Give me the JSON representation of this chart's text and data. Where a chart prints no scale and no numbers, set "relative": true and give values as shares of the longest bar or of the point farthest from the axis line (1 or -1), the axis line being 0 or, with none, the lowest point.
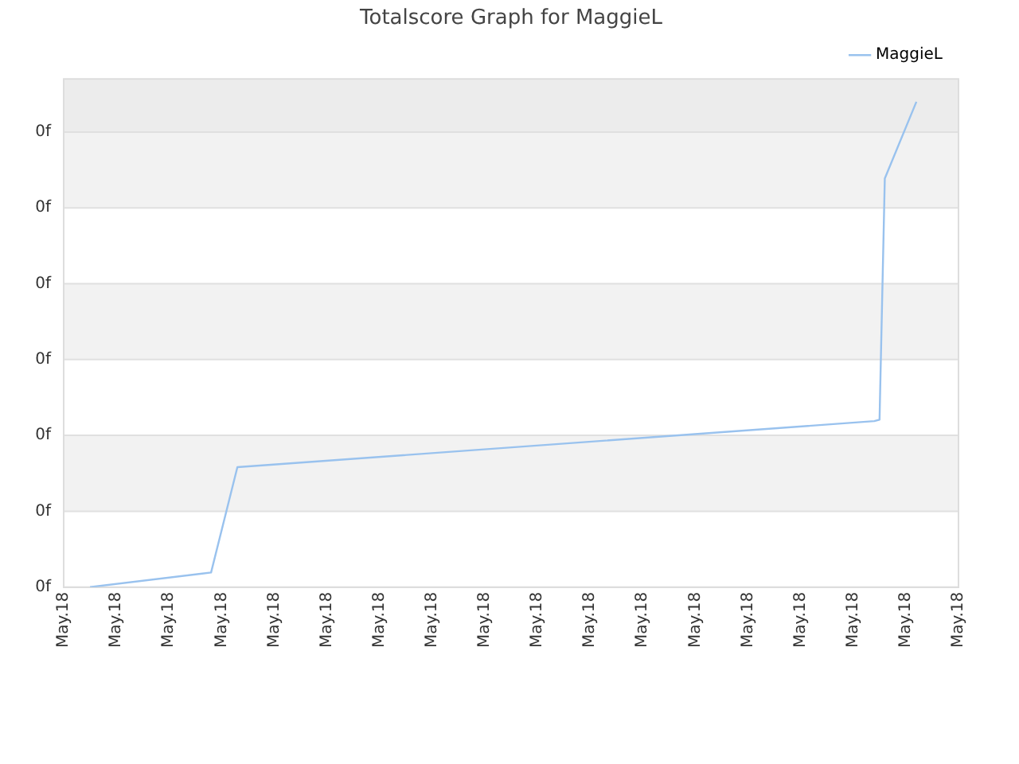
{
  "chart_data": {
    "type": "line",
    "title": "Totalscore Graph for MaggieL",
    "relative": true,
    "categories": [
      "May.18",
      null,
      null,
      null,
      null,
      null,
      null,
      null,
      null,
      null,
      "May.18",
      null,
      null,
      null,
      null,
      null,
      null,
      null,
      null,
      null,
      "May.18",
      null,
      null,
      null,
      null,
      null,
      null,
      null,
      null,
      null,
      "May.18",
      null,
      null,
      null,
      null,
      null,
      null,
      null,
      null,
      null,
      "May.18",
      null,
      null,
      null,
      null,
      null,
      null,
      null,
      null,
      null,
      "May.18",
      null,
      null,
      null,
      null,
      null,
      null,
      null,
      null,
      null,
      "May.18",
      null,
      null,
      null,
      null,
      null,
      null,
      null,
      null,
      null,
      "May.18",
      null,
      null,
      null,
      null,
      null,
      null,
      null,
      null,
      null,
      "May.18",
      null,
      null,
      null,
      null,
      null,
      null,
      null,
      null,
      null,
      "May.18",
      null,
      null,
      null,
      null,
      null,
      null,
      null,
      null,
      null,
      "May.18",
      null,
      null,
      null,
      null,
      null,
      null,
      null,
      null,
      null,
      "May.18",
      null,
      null,
      null,
      null,
      null,
      null,
      null,
      null,
      null,
      "May.18",
      null,
      null,
      null,
      null,
      null,
      null,
      null,
      null,
      null,
      "May.18",
      null,
      null,
      null,
      null,
      null,
      null,
      null,
      null,
      null,
      "May.18",
      null,
      null,
      null,
      null,
      null,
      null,
      null,
      null,
      null,
      "May.18",
      null,
      null,
      null,
      null,
      null,
      null,
      null,
      null,
      null,
      "May.18",
      null,
      null,
      null,
      null,
      null,
      null,
      null,
      null,
      null,
      "May.18"
    ],
    "series": [
      {
        "name": "MaggieL",
        "color": "#99c2ee",
        "values": [
          null,
          null,
          null,
          null,
          null,
          0,
          null,
          null,
          null,
          null,
          null,
          null,
          null,
          null,
          null,
          null,
          null,
          null,
          null,
          null,
          null,
          null,
          null,
          null,
          null,
          null,
          null,
          null,
          0.03,
          null,
          null,
          null,
          null,
          0.247,
          null,
          null,
          null,
          null,
          null,
          null,
          null,
          null,
          null,
          null,
          null,
          null,
          null,
          null,
          null,
          null,
          null,
          null,
          null,
          null,
          null,
          null,
          null,
          null,
          null,
          null,
          null,
          null,
          null,
          null,
          null,
          null,
          null,
          null,
          null,
          null,
          null,
          null,
          null,
          null,
          null,
          null,
          null,
          null,
          null,
          null,
          null,
          null,
          null,
          null,
          null,
          null,
          null,
          null,
          null,
          null,
          null,
          null,
          null,
          null,
          null,
          null,
          null,
          null,
          null,
          null,
          null,
          null,
          null,
          null,
          null,
          null,
          null,
          null,
          null,
          null,
          null,
          null,
          null,
          null,
          null,
          null,
          null,
          null,
          null,
          null,
          null,
          null,
          null,
          null,
          null,
          null,
          null,
          null,
          null,
          null,
          null,
          null,
          null,
          null,
          null,
          null,
          null,
          null,
          null,
          null,
          null,
          null,
          null,
          null,
          null,
          null,
          null,
          null,
          null,
          null,
          null,
          null,
          null,
          null,
          0.342,
          0.345,
          0.842,
          null,
          null,
          null,
          null,
          null,
          1,
          null,
          null,
          null,
          null,
          null,
          null,
          null,
          null
        ]
      }
    ],
    "annotations": [
      "0f",
      "0f",
      "0f",
      "0f",
      "0f",
      "0f",
      "0f"
    ],
    "grid": "y",
    "legend": "top right",
    "marker": "none",
    "line_style": "solid"
  }
}
